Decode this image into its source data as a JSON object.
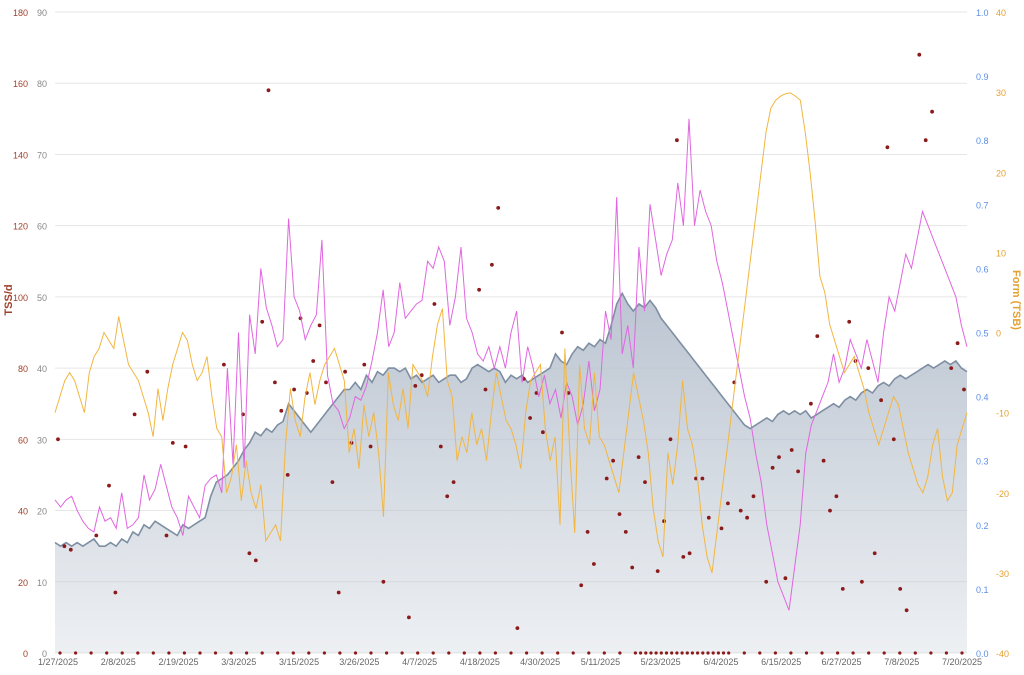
{
  "colors": {
    "fitness_fill": "#b8c2cf",
    "fitness_line": "#7e8fa3",
    "fatigue": "#e066e0",
    "form": "#f2b640",
    "tss_points": "#8b1a1a",
    "if_points": "#5b8fe6",
    "grid": "#e6e6e6",
    "axis_left": "#a0402a",
    "axis_right1": "#5b8fe6",
    "axis_right2": "#e3a12f"
  },
  "chart_data": {
    "type": "line",
    "title": "",
    "x_labels": [
      "1/27/2025",
      "2/8/2025",
      "2/19/2025",
      "3/3/2025",
      "3/15/2025",
      "3/26/2025",
      "4/7/2025",
      "4/18/2025",
      "4/30/2025",
      "5/11/2025",
      "5/23/2025",
      "6/4/2025",
      "6/15/2025",
      "6/27/2025",
      "7/8/2025",
      "7/20/2025"
    ],
    "axes": {
      "tss": {
        "label": "TSS/d",
        "min": 0,
        "max": 180,
        "ticks": [
          0,
          20,
          40,
          60,
          80,
          100,
          120,
          140,
          160,
          180
        ]
      },
      "load": {
        "label": "",
        "min": 0,
        "max": 90,
        "ticks": [
          0,
          10,
          20,
          30,
          40,
          50,
          60,
          70,
          80,
          90
        ]
      },
      "intensity": {
        "label": "",
        "min": 0.0,
        "max": 1.0,
        "ticks": [
          "0.0",
          "0.1",
          "0.2",
          "0.3",
          "0.4",
          "0.5",
          "0.6",
          "0.7",
          "0.8",
          "0.9",
          "1.0"
        ]
      },
      "form": {
        "label": "Form (TSB)",
        "min": -40,
        "max": 40,
        "ticks": [
          -40,
          -30,
          -20,
          -10,
          0,
          10,
          20,
          30,
          40
        ]
      }
    },
    "series": [
      {
        "kind": "area",
        "axis": "load",
        "values": [
          15.5,
          15,
          15.5,
          15,
          15.5,
          15,
          15.5,
          16,
          15,
          15,
          15.5,
          15,
          16,
          15.5,
          17,
          16.5,
          18,
          17.5,
          18.5,
          18,
          17.5,
          17,
          16.5,
          18,
          17.5,
          18,
          18.5,
          19,
          22,
          24,
          24.5,
          25,
          26,
          27,
          28.5,
          29.5,
          31,
          30.5,
          31.5,
          31,
          32,
          32.5,
          35,
          34,
          33,
          32,
          31,
          32,
          33,
          34,
          35,
          36,
          37,
          37,
          38,
          37,
          39,
          38,
          39.5,
          39,
          40,
          40,
          39.5,
          40,
          38.5,
          39,
          38,
          38.5,
          39,
          38,
          38.5,
          39,
          39,
          38,
          38.5,
          40,
          40.5,
          40,
          39.5,
          40,
          39.5,
          38,
          39,
          38.5,
          39,
          38,
          38.5,
          39,
          39.5,
          40,
          42,
          41,
          40.5,
          42,
          43,
          42.5,
          43.5,
          43,
          44,
          43.5,
          46,
          49,
          50.5,
          49,
          48,
          49,
          48.5,
          49.5,
          48.5,
          47,
          46,
          45,
          44,
          43,
          42,
          41,
          40,
          39,
          38,
          37,
          36,
          35,
          34,
          33,
          32,
          31.5,
          32,
          32.5,
          33,
          32.5,
          33.5,
          34,
          33.5,
          34,
          33.5,
          34,
          33,
          33.5,
          34,
          34.5,
          35,
          34.5,
          35.5,
          36,
          35.5,
          36.5,
          37,
          36.5,
          37.5,
          38,
          37.5,
          38.5,
          39,
          38.5,
          39,
          39.5,
          40,
          40.5,
          40,
          40.5,
          41,
          40.5,
          41,
          40,
          39.5
        ]
      },
      {
        "kind": "line",
        "axis": "load",
        "values": [
          21.5,
          20.5,
          21.5,
          22,
          20,
          18.5,
          17.5,
          17,
          20.5,
          18.5,
          19,
          17.5,
          22.5,
          17.5,
          18,
          19,
          25,
          21.5,
          23,
          26.5,
          23.5,
          20.5,
          19,
          16.5,
          22,
          20.5,
          19,
          23.5,
          24.5,
          25,
          22.5,
          40,
          26.5,
          45,
          26,
          47.5,
          42,
          54,
          48.5,
          46,
          43,
          44,
          61,
          50,
          48,
          44,
          46,
          47.5,
          58,
          39,
          35,
          34,
          31.5,
          33,
          36,
          35.5,
          37.5,
          41,
          45,
          51,
          43,
          45,
          52,
          47,
          48,
          49,
          49.5,
          55,
          54,
          57,
          55,
          46,
          50,
          57,
          47,
          45,
          42,
          41,
          43,
          40,
          43,
          40,
          45,
          48,
          38,
          43,
          40,
          36,
          39,
          35,
          37,
          33,
          38,
          36,
          32,
          35,
          41,
          34,
          37,
          48,
          44,
          64,
          42,
          46,
          40,
          57,
          48,
          63,
          58,
          53,
          56,
          58,
          66,
          60,
          75,
          60,
          65,
          62,
          60,
          55,
          52,
          48,
          44,
          40,
          36,
          33,
          28,
          24,
          18,
          14,
          10,
          8,
          6,
          12,
          18,
          28,
          32,
          34,
          36,
          38,
          42,
          38,
          40,
          44,
          42,
          40,
          44,
          41,
          38,
          45,
          50,
          48,
          52,
          56,
          54,
          58,
          62,
          60,
          58,
          56,
          54,
          52,
          50,
          46,
          43
        ]
      },
      {
        "kind": "line",
        "axis": "form",
        "values": [
          -10,
          -8,
          -6,
          -5,
          -6,
          -8,
          -10,
          -5,
          -3,
          -2,
          0,
          -1,
          -2,
          2,
          -1,
          -4,
          -5,
          -6,
          -8,
          -10,
          -13,
          -7,
          -11,
          -7,
          -4,
          -2,
          0,
          -1,
          -4,
          -6,
          -5,
          -3,
          -8,
          -12,
          -13,
          -20,
          -18,
          -14,
          -21,
          -16,
          -20,
          -22,
          -19,
          -26,
          -25,
          -24,
          -26,
          -14,
          -7,
          -11,
          -13,
          -8,
          -5,
          -9,
          -6,
          -4,
          -3,
          -2,
          -4,
          -6,
          -15,
          -12,
          -17,
          -9,
          -13,
          -10,
          -15,
          -23,
          -5,
          -9,
          -11,
          -7,
          -12,
          -4,
          -5,
          -6,
          -8,
          -3,
          1,
          3,
          -6,
          -8,
          -16,
          -13,
          -15,
          -10,
          -14,
          -12,
          -16,
          -10,
          -5,
          -8,
          -11,
          -12,
          -14,
          -17,
          -10,
          -6,
          -5,
          -4,
          -12,
          -16,
          -13,
          -24,
          -2,
          -15,
          -25,
          -4,
          -12,
          -14,
          -5,
          -13,
          -14,
          -16,
          -18,
          -20,
          -15,
          -10,
          -5,
          -8,
          -11,
          -15,
          -22,
          -26,
          -28,
          -15,
          -19,
          -14,
          -6,
          -12,
          -14,
          -18,
          -24,
          -28,
          -30,
          -25,
          -20,
          -15,
          -10,
          -5,
          0,
          5,
          10,
          15,
          20,
          25,
          28,
          29,
          29.5,
          29.8,
          29.9,
          29.5,
          29,
          25,
          20,
          14,
          7,
          5,
          1,
          -1,
          -3,
          -5,
          -4,
          -3,
          -5,
          -7,
          -10,
          -12,
          -14,
          -12,
          -10,
          -8,
          -9,
          -12,
          -15,
          -17,
          -19,
          -20,
          -18,
          -14,
          -12,
          -18,
          -21,
          -20,
          -14,
          -12,
          -10
        ]
      }
    ],
    "tss_points": [
      0,
      0,
      0,
      0,
      0,
      0,
      0,
      0,
      0,
      0,
      0,
      0,
      0,
      0,
      0,
      0,
      0,
      0,
      0,
      0,
      0,
      0,
      0,
      0,
      0,
      0,
      0,
      0,
      0,
      0,
      0,
      0,
      0,
      0,
      0,
      0,
      0,
      0,
      0,
      0,
      0,
      0,
      0,
      0,
      0,
      0,
      0,
      0,
      0,
      0,
      0,
      0,
      0,
      0,
      0,
      0,
      0,
      0,
      0,
      0,
      0,
      0,
      0,
      0,
      0,
      0,
      0,
      0,
      0,
      0,
      0,
      0,
      0,
      0,
      0,
      0,
      0,
      0,
      0,
      0,
      0,
      0,
      0,
      0,
      0,
      0,
      0,
      0,
      0,
      0,
      0,
      0,
      0,
      0,
      0,
      0,
      0,
      0,
      0,
      0,
      0,
      0,
      0,
      0,
      0,
      0,
      0,
      0,
      0,
      0,
      0,
      0,
      0,
      0,
      0,
      0,
      0,
      0,
      0,
      0,
      0,
      0,
      0,
      0,
      0,
      0,
      0,
      0,
      0,
      0,
      0,
      0,
      0,
      0,
      0,
      0,
      0,
      0,
      0,
      0,
      0,
      0,
      0,
      0,
      0,
      0,
      0,
      0,
      0,
      0,
      0,
      0,
      0,
      0,
      0,
      0,
      0,
      0,
      0,
      0,
      0,
      0,
      0,
      0,
      0,
      0,
      0,
      0,
      0,
      0,
      0,
      0,
      0,
      0,
      0,
      0,
      0,
      0,
      0,
      0,
      0,
      0,
      0,
      0,
      0,
      0,
      0
    ],
    "tss_scatter": [
      [
        0,
        60
      ],
      [
        1,
        30
      ],
      [
        2,
        29
      ],
      [
        6,
        33
      ],
      [
        8,
        47
      ],
      [
        9,
        17
      ],
      [
        12,
        67
      ],
      [
        14,
        79
      ],
      [
        17,
        33
      ],
      [
        18,
        59
      ],
      [
        20,
        58
      ],
      [
        26,
        81
      ],
      [
        29,
        67
      ],
      [
        30,
        28
      ],
      [
        31,
        26
      ],
      [
        32,
        93
      ],
      [
        33,
        158
      ],
      [
        34,
        76
      ],
      [
        35,
        68
      ],
      [
        36,
        50
      ],
      [
        37,
        74
      ],
      [
        38,
        94
      ],
      [
        39,
        73
      ],
      [
        40,
        82
      ],
      [
        41,
        92
      ],
      [
        42,
        76
      ],
      [
        43,
        48
      ],
      [
        44,
        17
      ],
      [
        45,
        79
      ],
      [
        46,
        59
      ],
      [
        48,
        81
      ],
      [
        49,
        58
      ],
      [
        51,
        20
      ],
      [
        55,
        10
      ],
      [
        56,
        75
      ],
      [
        57,
        78
      ],
      [
        59,
        98
      ],
      [
        60,
        58
      ],
      [
        61,
        44
      ],
      [
        62,
        48
      ],
      [
        66,
        102
      ],
      [
        67,
        74
      ],
      [
        68,
        109
      ],
      [
        69,
        125
      ],
      [
        72,
        7
      ],
      [
        73,
        77
      ],
      [
        74,
        66
      ],
      [
        75,
        73
      ],
      [
        76,
        62
      ],
      [
        79,
        90
      ],
      [
        80,
        73
      ],
      [
        82,
        19
      ],
      [
        83,
        34
      ],
      [
        84,
        25
      ],
      [
        86,
        49
      ],
      [
        87,
        54
      ],
      [
        88,
        39
      ],
      [
        89,
        34
      ],
      [
        90,
        24
      ],
      [
        91,
        55
      ],
      [
        92,
        48
      ],
      [
        94,
        23
      ],
      [
        95,
        37
      ],
      [
        96,
        60
      ],
      [
        97,
        144
      ],
      [
        98,
        27
      ],
      [
        99,
        28
      ],
      [
        100,
        49
      ],
      [
        101,
        49
      ],
      [
        102,
        38
      ],
      [
        104,
        35
      ],
      [
        105,
        42
      ],
      [
        106,
        76
      ],
      [
        107,
        40
      ],
      [
        108,
        38
      ],
      [
        109,
        44
      ],
      [
        111,
        20
      ],
      [
        112,
        52
      ],
      [
        113,
        55
      ],
      [
        114,
        21
      ],
      [
        115,
        57
      ],
      [
        116,
        51
      ],
      [
        118,
        70
      ],
      [
        119,
        89
      ],
      [
        120,
        54
      ],
      [
        121,
        40
      ],
      [
        122,
        44
      ],
      [
        123,
        18
      ],
      [
        124,
        93
      ],
      [
        125,
        82
      ],
      [
        126,
        20
      ],
      [
        127,
        80
      ],
      [
        128,
        28
      ],
      [
        129,
        71
      ],
      [
        130,
        142
      ],
      [
        131,
        60
      ],
      [
        132,
        18
      ],
      [
        133,
        12
      ],
      [
        135,
        168
      ],
      [
        136,
        144
      ],
      [
        137,
        152
      ],
      [
        140,
        80
      ],
      [
        141,
        87
      ],
      [
        142,
        74
      ]
    ]
  },
  "legend": {
    "tss_axis_label": "TSS/d",
    "form_axis_label": "Form (TSB)"
  }
}
